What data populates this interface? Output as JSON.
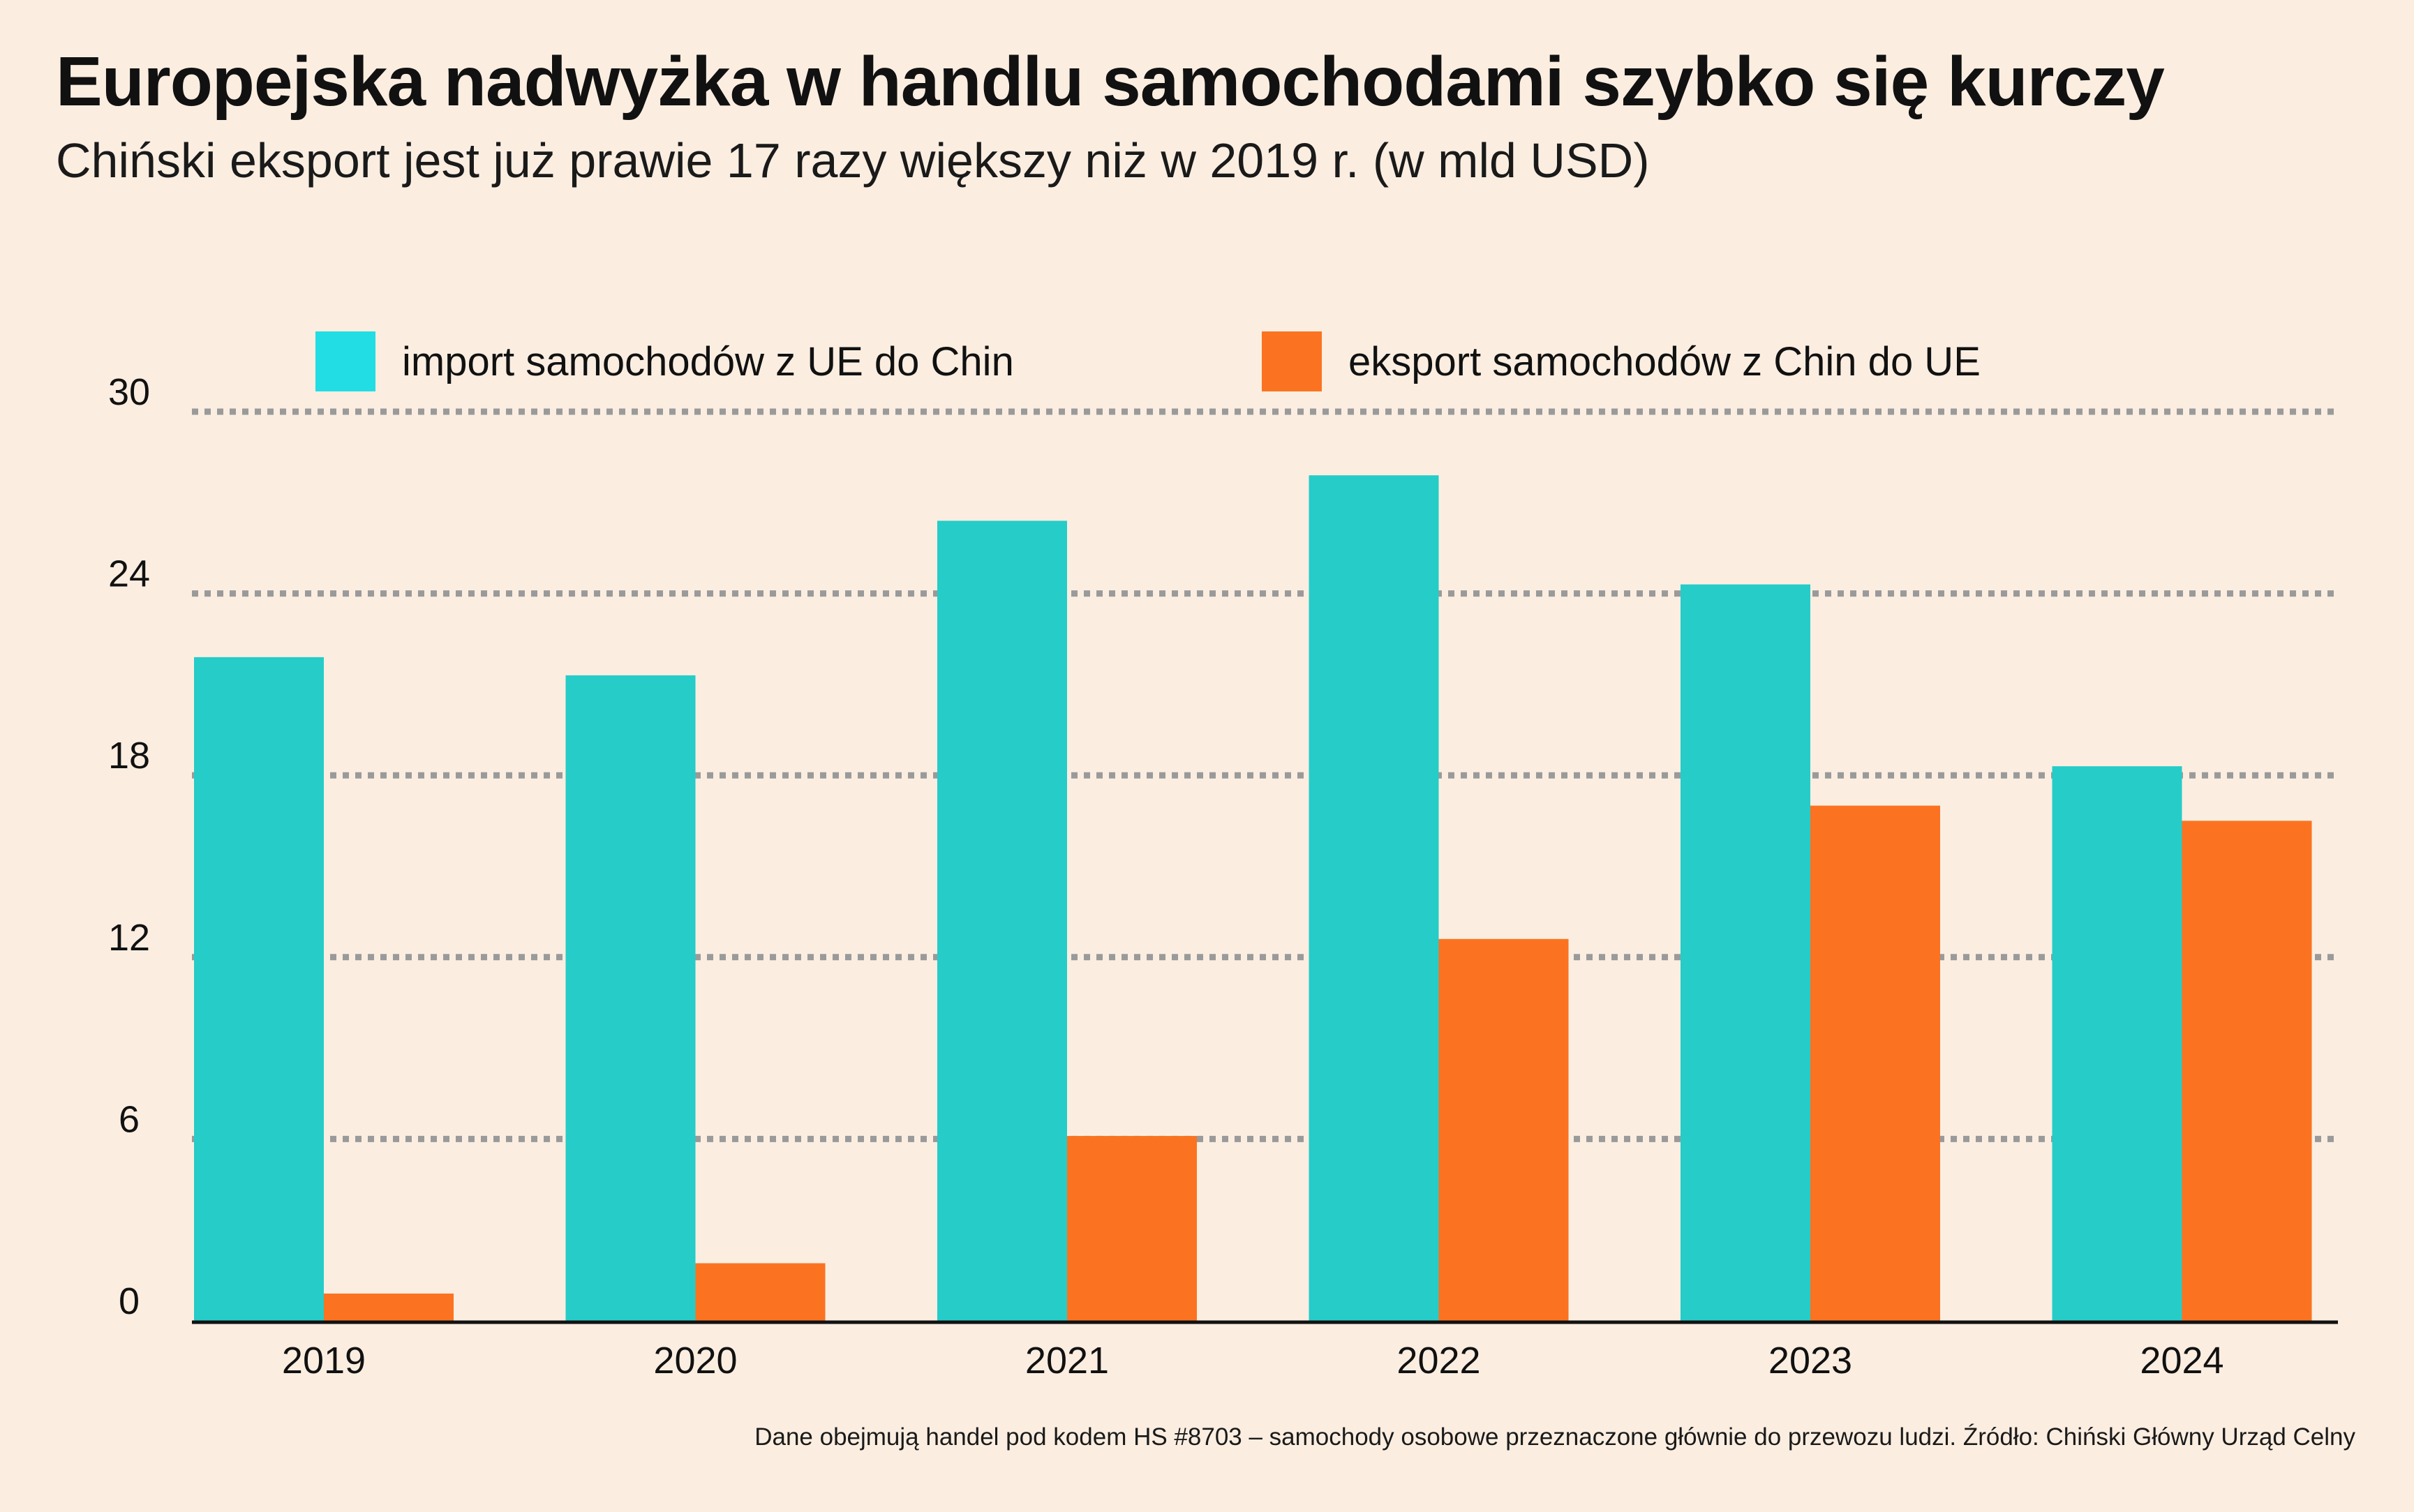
{
  "title": "Europejska nadwyżka w handlu samochodami szybko się kurczy",
  "subtitle": "Chiński eksport jest już prawie 17 razy większy niż w 2019 r. (w mld USD)",
  "note": "Dane obejmują handel pod kodem HS #8703 – samochody osobowe przeznaczone głównie do przewozu ludzi. Źródło: Chiński Główny Urząd Celny",
  "colors": {
    "background": "#fbeee1",
    "import": "#26ccc8",
    "export": "#fb7321",
    "legend_import": "#22dde3",
    "legend_export": "#fb7321",
    "grid": "#9a9a9a",
    "axis": "#111111"
  },
  "chart_data": {
    "type": "bar",
    "categories": [
      "2019",
      "2020",
      "2021",
      "2022",
      "2023",
      "2024"
    ],
    "series": [
      {
        "name": "import samochodów z UE do Chin",
        "values": [
          21.9,
          21.3,
          26.4,
          27.9,
          24.3,
          18.3
        ]
      },
      {
        "name": "eksport samochodów z Chin do UE",
        "values": [
          0.9,
          1.9,
          6.1,
          12.6,
          17.0,
          16.5
        ]
      }
    ],
    "yticks": [
      0,
      6,
      12,
      18,
      24,
      30
    ],
    "ylim": [
      0,
      30
    ],
    "grid": true,
    "legend_position": "top"
  }
}
